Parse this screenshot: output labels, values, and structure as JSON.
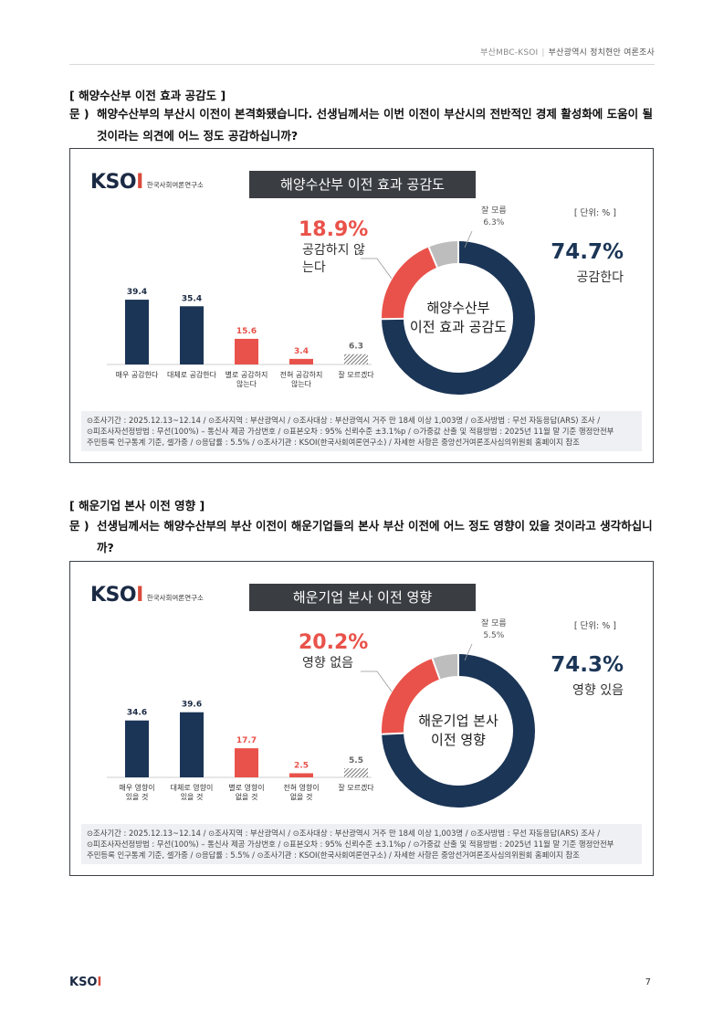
{
  "header": {
    "source": "부산MBC-KSOI",
    "title": "부산광역시 정치현안 여론조사"
  },
  "sections": [
    {
      "heading": "[ 해양수산부 이전 효과 공감도 ]",
      "q_label": "문 )",
      "question": "해양수산부의 부산시 이전이 본격화됐습니다. 선생님께서는 이번 이전이 부산시의 전반적인 경제 활성화에 도움이 될 것이라는 의견에 어느 정도 공감하십니까?",
      "chart_title": "해양수산부 이전 효과 공감도",
      "unit": "[ 단위: % ]",
      "neg_pct": "18.9%",
      "neg_label": "공감하지 않는다",
      "pos_pct": "74.7%",
      "pos_label": "공감한다",
      "dk_label": "잘 모름",
      "dk_pct": "6.3%",
      "center_line1": "해양수산부",
      "center_line2": "이전 효과 공감도",
      "footnote1": "⊙조사기간 : 2025.12.13~12.14 / ⊙조사지역 : 부산광역시 / ⊙조사대상 : 부산광역시 거주 만 18세 이상 1,003명 / ⊙조사방법 : 무선 자동응답(ARS) 조사 /",
      "footnote2": "⊙피조사자선정방법 : 무선(100%) – 통신사 제공 가상번호 / ⊙표본오차 : 95% 신뢰수준 ±3.1%p / ⊙가중값 산출 및 적용방법 : 2025년 11월 말 기준 행정안전부",
      "footnote3": "주민등록 인구통계 기준, 셀가중 / ⊙응답률 : 5.5% / ⊙조사기관 : KSOI(한국사회여론연구소) / 자세한 사항은 중앙선거여론조사심의위원회 홈페이지 참조"
    },
    {
      "heading": "[ 해운기업 본사 이전 영향 ]",
      "q_label": "문 )",
      "question": "선생님께서는 해양수산부의 부산 이전이 해운기업들의 본사 부산 이전에 어느 정도 영향이 있을 것이라고 생각하십니까?",
      "chart_title": "해운기업 본사 이전 영향",
      "unit": "[ 단위: % ]",
      "neg_pct": "20.2%",
      "neg_label": "영향 없음",
      "pos_pct": "74.3%",
      "pos_label": "영향 있음",
      "dk_label": "잘 모름",
      "dk_pct": "5.5%",
      "center_line1": "해운기업 본사",
      "center_line2": "이전 영향",
      "footnote1": "⊙조사기간 : 2025.12.13~12.14 / ⊙조사지역 : 부산광역시 / ⊙조사대상 : 부산광역시 거주 만 18세 이상 1,003명 / ⊙조사방법 : 무선 자동응답(ARS) 조사 /",
      "footnote2": "⊙피조사자선정방법 : 무선(100%) – 통신사 제공 가상번호 / ⊙표본오차 : 95% 신뢰수준 ±3.1%p / ⊙가중값 산출 및 적용방법 : 2025년 11월 말 기준 행정안전부",
      "footnote3": "주민등록 인구통계 기준, 셀가중 / ⊙응답률 : 5.5% / ⊙조사기관 : KSOI(한국사회여론연구소) / 자세한 사항은 중앙선거여론조사심의위원회 홈페이지 참조"
    }
  ],
  "logo": {
    "mark_a": "KSO",
    "mark_b": "I",
    "org": "한국사회여론연구소"
  },
  "page_number": "7",
  "colors": {
    "navy": "#1b3556",
    "red": "#e9524a",
    "gray": "#bdbdbd"
  },
  "chart_data": [
    {
      "type": "bar",
      "title": "해양수산부 이전 효과 공감도",
      "categories": [
        [
          "매우 공감한다"
        ],
        [
          "대체로 공감한다"
        ],
        [
          "별로 공감하지",
          "않는다"
        ],
        [
          "전혀 공감하지",
          "않는다"
        ],
        [
          "잘 모르겠다"
        ]
      ],
      "values": [
        39.4,
        35.4,
        15.6,
        3.4,
        6.3
      ],
      "value_labels": [
        "39.4",
        "35.4",
        "15.6",
        "3.4",
        "6.3"
      ],
      "bar_colors": [
        "#1b3556",
        "#1b3556",
        "#e9524a",
        "#e9524a",
        "hatch"
      ],
      "donut": {
        "type": "pie",
        "values": [
          74.7,
          18.9,
          6.3
        ],
        "labels": [
          "공감한다",
          "공감하지 않는다",
          "잘 모름"
        ],
        "colors": [
          "#1b3556",
          "#e9524a",
          "#bdbdbd"
        ]
      }
    },
    {
      "type": "bar",
      "title": "해운기업 본사 이전 영향",
      "categories": [
        [
          "매우 영향이",
          "있을 것"
        ],
        [
          "대체로 영향이",
          "있을 것"
        ],
        [
          "별로 영향이",
          "없을 것"
        ],
        [
          "전혀 영향이",
          "없을 것"
        ],
        [
          "잘 모르겠다"
        ]
      ],
      "values": [
        34.6,
        39.6,
        17.7,
        2.5,
        5.5
      ],
      "value_labels": [
        "34.6",
        "39.6",
        "17.7",
        "2.5",
        "5.5"
      ],
      "bar_colors": [
        "#1b3556",
        "#1b3556",
        "#e9524a",
        "#e9524a",
        "hatch"
      ],
      "donut": {
        "type": "pie",
        "values": [
          74.3,
          20.2,
          5.5
        ],
        "labels": [
          "영향 있음",
          "영향 없음",
          "잘 모름"
        ],
        "colors": [
          "#1b3556",
          "#e9524a",
          "#bdbdbd"
        ]
      }
    }
  ]
}
